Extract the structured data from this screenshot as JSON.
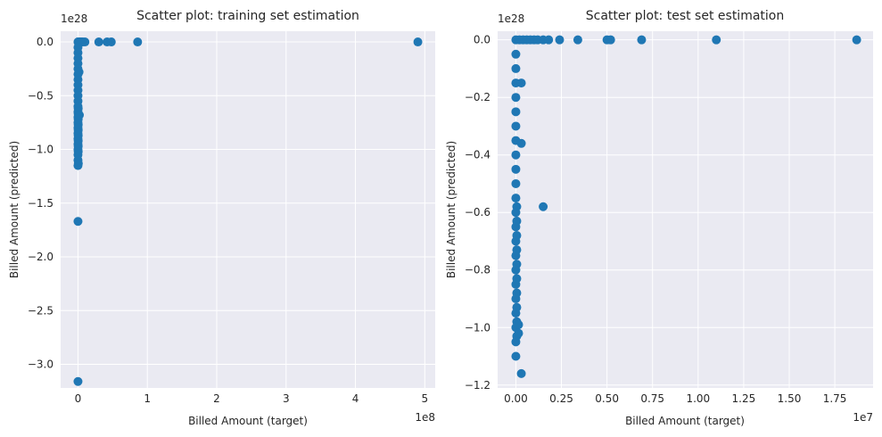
{
  "chart_data": [
    {
      "type": "scatter",
      "title": "Scatter plot: training set estimation",
      "xlabel": "Billed Amount (target)",
      "ylabel": "Billed Amount (predicted)",
      "x_offset_text": "1e8",
      "y_offset_text": "1e28",
      "x_scale": 100000000,
      "y_scale": 1e+28,
      "xlim": [
        -0.25,
        5.15
      ],
      "ylim": [
        -3.22,
        0.1
      ],
      "x_ticks": [
        0,
        1,
        2,
        3,
        4,
        5
      ],
      "x_tick_labels": [
        "0",
        "1",
        "2",
        "3",
        "4",
        "5"
      ],
      "y_ticks": [
        0.0,
        -0.5,
        -1.0,
        -1.5,
        -2.0,
        -2.5,
        -3.0
      ],
      "y_tick_labels": [
        "0.0",
        "−0.5",
        "−1.0",
        "−1.5",
        "−2.0",
        "−2.5",
        "−3.0"
      ],
      "grid": true,
      "color": "#1f77b4",
      "points": {
        "x": [
          0.0,
          0.005,
          0.01,
          0.02,
          0.03,
          0.05,
          0.07,
          0.1,
          0.3,
          0.42,
          0.48,
          0.86,
          4.9,
          0.0,
          0.0,
          0.0,
          0.0,
          0.0,
          0.0,
          0.0,
          0.0,
          0.0,
          0.0,
          0.0,
          0.0,
          0.003,
          0.003,
          0.003,
          0.003,
          0.003,
          0.003,
          0.003,
          0.003,
          0.003,
          0.0,
          0.0,
          0.0,
          0.0,
          0.0,
          0.0,
          0.0,
          0.0,
          0.0,
          0.0,
          0.0,
          0.015,
          0.02,
          0.005,
          0.0,
          0.0
        ],
        "y": [
          0.0,
          0.0,
          0.0,
          0.0,
          0.0,
          0.0,
          0.0,
          0.0,
          0.0,
          0.0,
          0.0,
          0.0,
          0.0,
          -0.05,
          -0.1,
          -0.15,
          -0.2,
          -0.25,
          -0.3,
          -0.35,
          -0.4,
          -0.45,
          -0.5,
          -0.55,
          -0.6,
          -0.62,
          -0.67,
          -0.72,
          -0.77,
          -0.82,
          -0.87,
          -0.92,
          -0.97,
          -1.02,
          -0.65,
          -0.7,
          -0.75,
          -0.8,
          -0.85,
          -0.9,
          -0.95,
          -1.0,
          -1.05,
          -1.1,
          -1.15,
          -0.28,
          -0.68,
          -1.13,
          -1.67,
          -3.16
        ]
      }
    },
    {
      "type": "scatter",
      "title": "Scatter plot: test set estimation",
      "xlabel": "Billed Amount (target)",
      "ylabel": "Billed Amount (predicted)",
      "x_offset_text": "1e7",
      "y_offset_text": "1e28",
      "x_scale": 10000000,
      "y_scale": 1e+28,
      "xlim": [
        -0.1,
        1.96
      ],
      "ylim": [
        -1.21,
        0.03
      ],
      "x_ticks": [
        0.0,
        0.25,
        0.5,
        0.75,
        1.0,
        1.25,
        1.5,
        1.75
      ],
      "x_tick_labels": [
        "0.00",
        "0.25",
        "0.50",
        "0.75",
        "1.00",
        "1.25",
        "1.50",
        "1.75"
      ],
      "y_ticks": [
        0.0,
        -0.2,
        -0.4,
        -0.6,
        -0.8,
        -1.0,
        -1.2
      ],
      "y_tick_labels": [
        "0.0",
        "−0.2",
        "−0.4",
        "−0.6",
        "−0.8",
        "−1.0",
        "−1.2"
      ],
      "grid": true,
      "color": "#1f77b4",
      "points": {
        "x": [
          0.0,
          0.02,
          0.04,
          0.06,
          0.08,
          0.1,
          0.12,
          0.15,
          0.18,
          0.24,
          0.34,
          0.5,
          0.52,
          0.69,
          1.1,
          1.87,
          0.0,
          0.0,
          0.0,
          0.0,
          0.0,
          0.0,
          0.0,
          0.0,
          0.0,
          0.0,
          0.0,
          0.0,
          0.005,
          0.005,
          0.005,
          0.005,
          0.005,
          0.005,
          0.005,
          0.005,
          0.005,
          0.005,
          0.0,
          0.0,
          0.0,
          0.0,
          0.0,
          0.0,
          0.0,
          0.0,
          0.0,
          0.0,
          0.03,
          0.03,
          0.15,
          0.015,
          0.015,
          0.03
        ],
        "y": [
          0.0,
          0.0,
          0.0,
          0.0,
          0.0,
          0.0,
          0.0,
          0.0,
          0.0,
          0.0,
          0.0,
          0.0,
          0.0,
          0.0,
          0.0,
          0.0,
          -0.05,
          -0.1,
          -0.15,
          -0.2,
          -0.25,
          -0.3,
          -0.35,
          -0.4,
          -0.45,
          -0.5,
          -0.55,
          -0.6,
          -0.58,
          -0.63,
          -0.68,
          -0.73,
          -0.78,
          -0.83,
          -0.88,
          -0.93,
          -0.98,
          -1.03,
          -0.65,
          -0.7,
          -0.75,
          -0.8,
          -0.85,
          -0.9,
          -0.95,
          -1.0,
          -1.05,
          -1.1,
          -0.15,
          -0.36,
          -0.58,
          -0.99,
          -1.02,
          -1.16
        ]
      }
    }
  ]
}
